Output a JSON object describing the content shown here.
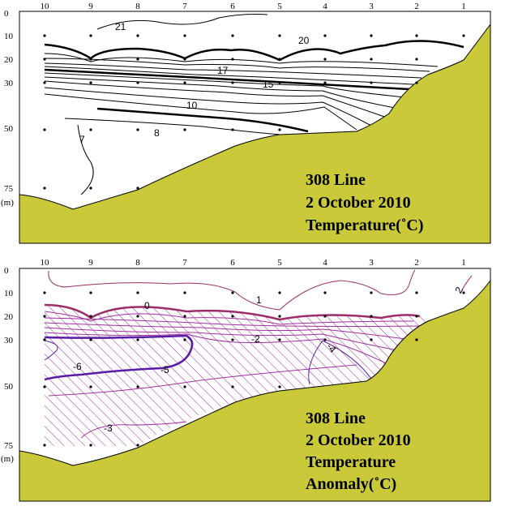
{
  "chart_data": [
    {
      "type": "contour",
      "title_lines": [
        "308 Line",
        "2 October 2010",
        "Temperature(˚C)"
      ],
      "variable": "Temperature",
      "unit": "°C",
      "stations": [
        "10",
        "9",
        "8",
        "7",
        "6",
        "5",
        "4",
        "3",
        "2",
        "1"
      ],
      "depth_ticks": [
        "0",
        "10",
        "20",
        "30",
        "50",
        "75"
      ],
      "depth_unit": "(m)",
      "depth_range": [
        0,
        100
      ],
      "contour_labels": [
        "21",
        "20",
        "17",
        "15",
        "10",
        "8",
        "7"
      ],
      "terrain_color": "#c9c93a"
    },
    {
      "type": "contour",
      "title_lines": [
        "308 Line",
        "2 October 2010",
        "Temperature",
        "Anomaly(˚C)"
      ],
      "variable": "Temperature Anomaly",
      "unit": "°C",
      "stations": [
        "10",
        "9",
        "8",
        "7",
        "6",
        "5",
        "4",
        "3",
        "2",
        "1"
      ],
      "depth_ticks": [
        "0",
        "10",
        "20",
        "30",
        "50",
        "75"
      ],
      "depth_unit": "(m)",
      "depth_range": [
        0,
        100
      ],
      "contour_labels": [
        "2",
        "1",
        "0",
        "-2",
        "-4",
        "-5",
        "-6",
        "-3"
      ],
      "hatched_region": "negative anomaly",
      "terrain_color": "#c9c93a"
    }
  ]
}
